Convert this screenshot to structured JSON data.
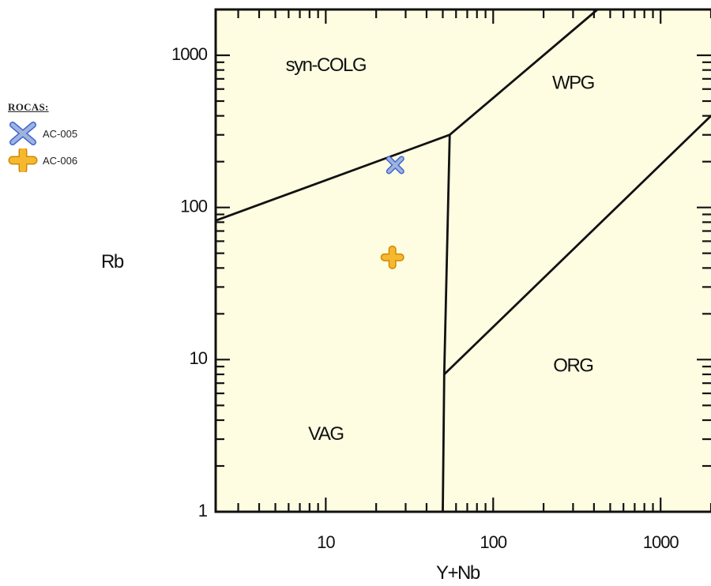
{
  "chart_data": {
    "type": "scatter",
    "xlabel": "Y+Nb",
    "ylabel": "Rb",
    "xscale": "log",
    "yscale": "log",
    "xlim": [
      2.2,
      2000
    ],
    "ylim": [
      1,
      2000
    ],
    "x_ticks": [
      10,
      100,
      1000
    ],
    "x_tick_labels": [
      "10",
      "100",
      "1000"
    ],
    "y_ticks": [
      1,
      10,
      100,
      1000
    ],
    "y_tick_labels": [
      "1",
      "10",
      "100",
      "1000"
    ],
    "background_color": "#FFFDE1",
    "boundary_color": "#111111",
    "boundaries": [
      {
        "from": [
          2.2,
          82
        ],
        "to": [
          55,
          300
        ]
      },
      {
        "from": [
          55,
          300
        ],
        "to": [
          420,
          2000
        ]
      },
      {
        "from": [
          55,
          300
        ],
        "to": [
          51,
          8
        ]
      },
      {
        "from": [
          51,
          8
        ],
        "to": [
          50,
          1
        ]
      },
      {
        "from": [
          51,
          8
        ],
        "to": [
          2000,
          400
        ]
      }
    ],
    "regions": [
      {
        "label": "syn-COLG",
        "x": 10,
        "y": 850
      },
      {
        "label": "WPG",
        "x": 300,
        "y": 650
      },
      {
        "label": "VAG",
        "x": 10,
        "y": 3.2
      },
      {
        "label": "ORG",
        "x": 300,
        "y": 9
      }
    ],
    "legend_title": "ROCAS:",
    "legend_position": "left",
    "series": [
      {
        "name": "AC-005",
        "marker": "x",
        "color": "#3E63D9",
        "fill": "#9FB4D9",
        "points": [
          [
            26,
            190
          ]
        ]
      },
      {
        "name": "AC-006",
        "marker": "plus",
        "color": "#E8A200",
        "fill": "#F5B82E",
        "points": [
          [
            25,
            47
          ]
        ]
      }
    ]
  }
}
